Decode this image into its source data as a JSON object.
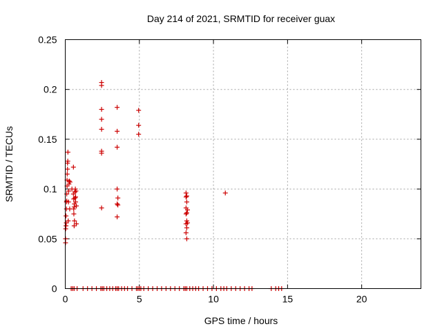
{
  "chart_data": {
    "type": "scatter",
    "title": "Day 214 of 2021, SRMTID for receiver guax",
    "xlabel": "GPS time / hours",
    "ylabel": "SRMTID / TECUs",
    "xlim": [
      0,
      24
    ],
    "ylim": [
      0,
      0.25
    ],
    "xticks": [
      0,
      5,
      10,
      15,
      20
    ],
    "xtick_labels": [
      "0",
      "5",
      "10",
      "15",
      "20"
    ],
    "yticks": [
      0,
      0.05,
      0.1,
      0.15,
      0.2,
      0.25
    ],
    "ytick_labels": [
      "0",
      "0.05",
      "0.1",
      "0.15",
      "0.2",
      "0.25"
    ],
    "grid": true,
    "marker": "plus",
    "color": "#cc0000",
    "series": [
      {
        "name": "SRMTID",
        "points": [
          [
            0.02,
            0.046
          ],
          [
            0.02,
            0.05
          ],
          [
            0.03,
            0.06
          ],
          [
            0.05,
            0.063
          ],
          [
            0.05,
            0.073
          ],
          [
            0.07,
            0.066
          ],
          [
            0.08,
            0.08
          ],
          [
            0.08,
            0.087
          ],
          [
            0.1,
            0.088
          ],
          [
            0.1,
            0.095
          ],
          [
            0.12,
            0.103
          ],
          [
            0.12,
            0.109
          ],
          [
            0.13,
            0.115
          ],
          [
            0.15,
            0.12
          ],
          [
            0.15,
            0.126
          ],
          [
            0.17,
            0.128
          ],
          [
            0.18,
            0.137
          ],
          [
            0.2,
            0.068
          ],
          [
            0.22,
            0.087
          ],
          [
            0.23,
            0.098
          ],
          [
            0.25,
            0.105
          ],
          [
            0.27,
            0.108
          ],
          [
            0.3,
            0.08
          ],
          [
            0.32,
            0.107
          ],
          [
            0.55,
            0.122
          ],
          [
            0.55,
            0.095
          ],
          [
            0.57,
            0.09
          ],
          [
            0.57,
            0.08
          ],
          [
            0.58,
            0.075
          ],
          [
            0.6,
            0.082
          ],
          [
            0.6,
            0.063
          ],
          [
            0.62,
            0.068
          ],
          [
            0.62,
            0.085
          ],
          [
            0.65,
            0.091
          ],
          [
            0.65,
            0.097
          ],
          [
            0.68,
            0.1
          ],
          [
            0.7,
            0.092
          ],
          [
            0.7,
            0.087
          ],
          [
            0.72,
            0.098
          ],
          [
            0.75,
            0.083
          ],
          [
            0.75,
            0.065
          ],
          [
            0.45,
            0.1
          ],
          [
            2.45,
            0.207
          ],
          [
            2.45,
            0.204
          ],
          [
            2.45,
            0.18
          ],
          [
            2.45,
            0.17
          ],
          [
            2.45,
            0.16
          ],
          [
            2.45,
            0.138
          ],
          [
            2.45,
            0.136
          ],
          [
            2.45,
            0.081
          ],
          [
            3.5,
            0.182
          ],
          [
            3.5,
            0.158
          ],
          [
            3.5,
            0.142
          ],
          [
            3.5,
            0.1
          ],
          [
            3.55,
            0.091
          ],
          [
            3.5,
            0.085
          ],
          [
            3.55,
            0.084
          ],
          [
            3.5,
            0.072
          ],
          [
            4.95,
            0.179
          ],
          [
            4.95,
            0.164
          ],
          [
            4.95,
            0.155
          ],
          [
            8.15,
            0.096
          ],
          [
            8.2,
            0.093
          ],
          [
            8.15,
            0.092
          ],
          [
            8.2,
            0.087
          ],
          [
            8.15,
            0.081
          ],
          [
            8.25,
            0.079
          ],
          [
            8.2,
            0.076
          ],
          [
            8.15,
            0.075
          ],
          [
            8.2,
            0.068
          ],
          [
            8.15,
            0.065
          ],
          [
            8.25,
            0.066
          ],
          [
            8.2,
            0.061
          ],
          [
            8.15,
            0.056
          ],
          [
            8.2,
            0.05
          ],
          [
            10.8,
            0.096
          ],
          [
            0.4,
            0
          ],
          [
            0.5,
            0
          ],
          [
            0.6,
            0
          ],
          [
            0.8,
            0
          ],
          [
            1.2,
            0
          ],
          [
            1.5,
            0
          ],
          [
            1.8,
            0
          ],
          [
            2.1,
            0
          ],
          [
            2.4,
            0
          ],
          [
            2.5,
            0
          ],
          [
            2.6,
            0
          ],
          [
            2.8,
            0
          ],
          [
            3.0,
            0
          ],
          [
            3.2,
            0
          ],
          [
            3.4,
            0
          ],
          [
            3.5,
            0
          ],
          [
            3.6,
            0
          ],
          [
            3.8,
            0
          ],
          [
            4.0,
            0
          ],
          [
            4.2,
            0
          ],
          [
            4.5,
            0
          ],
          [
            4.8,
            0
          ],
          [
            4.9,
            0
          ],
          [
            5.0,
            0
          ],
          [
            5.1,
            0
          ],
          [
            5.3,
            0
          ],
          [
            5.6,
            0
          ],
          [
            5.9,
            0
          ],
          [
            6.2,
            0
          ],
          [
            6.5,
            0
          ],
          [
            6.8,
            0
          ],
          [
            7.1,
            0
          ],
          [
            7.4,
            0
          ],
          [
            7.7,
            0
          ],
          [
            8.0,
            0
          ],
          [
            8.1,
            0
          ],
          [
            8.2,
            0
          ],
          [
            8.4,
            0
          ],
          [
            8.6,
            0
          ],
          [
            8.8,
            0
          ],
          [
            9.0,
            0
          ],
          [
            9.3,
            0
          ],
          [
            9.6,
            0
          ],
          [
            9.9,
            0
          ],
          [
            10.2,
            0
          ],
          [
            10.5,
            0
          ],
          [
            10.7,
            0
          ],
          [
            10.9,
            0
          ],
          [
            11.2,
            0
          ],
          [
            11.5,
            0
          ],
          [
            11.8,
            0
          ],
          [
            12.1,
            0
          ],
          [
            12.4,
            0
          ],
          [
            12.6,
            0
          ],
          [
            13.9,
            0
          ],
          [
            14.2,
            0
          ],
          [
            14.4,
            0
          ],
          [
            14.6,
            0
          ]
        ]
      }
    ]
  }
}
